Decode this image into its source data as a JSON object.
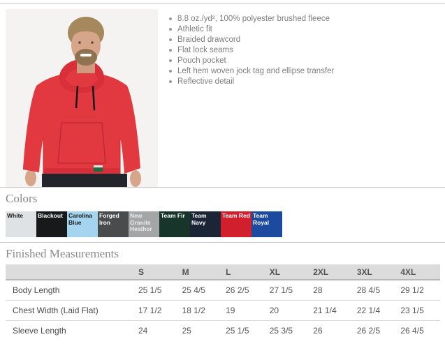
{
  "product": {
    "features": [
      "8.8 oz./yd², 100% polyester brushed fleece",
      "Athletic fit",
      "Braided drawcord",
      "Flat lock seams",
      "Pouch pocket",
      "Left hem woven jock tag and ellipse transfer",
      "Reflective detail"
    ]
  },
  "colors_section": {
    "title": "Colors",
    "swatches": [
      {
        "label": "White",
        "bg": "#dee2e5",
        "text": "#1a1a1a"
      },
      {
        "label": "Blackout",
        "bg": "#17191b",
        "text": "#ffffff"
      },
      {
        "label": "Carolina Blue",
        "bg": "#a4d4ee",
        "text": "#1a1a1a"
      },
      {
        "label": "Forged Iron",
        "bg": "#4a4b4d",
        "text": "#ffffff"
      },
      {
        "label": "New Granite Heather",
        "bg": "#a3a5a7",
        "text": "#e9eaeb"
      },
      {
        "label": "Team Fir",
        "bg": "#17352b",
        "text": "#ffffff"
      },
      {
        "label": "Team Navy",
        "bg": "#1b2535",
        "text": "#ffffff"
      },
      {
        "label": "Team Red",
        "bg": "#d11f2d",
        "text": "#ffffff"
      },
      {
        "label": "Team Royal",
        "bg": "#1b4a9e",
        "text": "#ffffff"
      }
    ]
  },
  "measurements": {
    "title": "Finished Measurements",
    "columns": [
      "S",
      "M",
      "L",
      "XL",
      "2XL",
      "3XL",
      "4XL"
    ],
    "rows": [
      {
        "label": "Body Length",
        "values": [
          "25 1/5",
          "25 4/5",
          "26 2/5",
          "27 1/5",
          "28",
          "28 4/5",
          "29 1/2"
        ]
      },
      {
        "label": "Chest Width (Laid Flat)",
        "values": [
          "17 1/2",
          "18 1/2",
          "19",
          "20",
          "21 1/4",
          "22 1/4",
          "23 1/5"
        ]
      },
      {
        "label": "Sleeve Length",
        "values": [
          "24",
          "25",
          "25 1/5",
          "25 3/5",
          "26",
          "26 2/5",
          "26 4/5"
        ]
      }
    ]
  }
}
